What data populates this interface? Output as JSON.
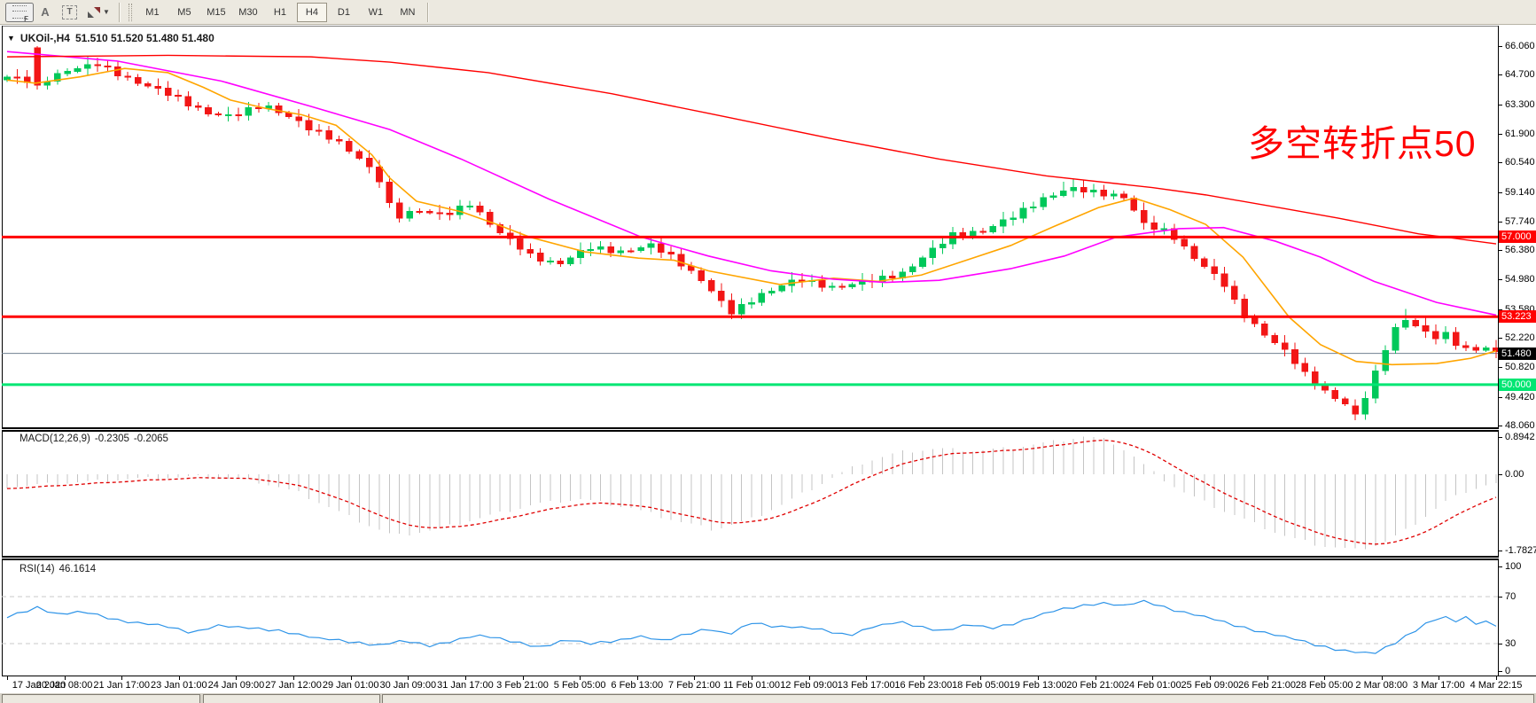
{
  "ui": {
    "toolbar": {
      "tools": [
        {
          "name": "fibonacci-tool",
          "glyph": "F"
        },
        {
          "name": "text-tool",
          "glyph": "A"
        },
        {
          "name": "text-label-tool",
          "glyph": "T"
        },
        {
          "name": "arrows-tool",
          "glyph": "arrows"
        }
      ],
      "timeframes": [
        "M1",
        "M5",
        "M15",
        "M30",
        "H1",
        "H4",
        "D1",
        "W1",
        "MN"
      ],
      "active_timeframe": "H4"
    },
    "title": {
      "collapse_glyph": "▼",
      "symbol": "UKOil-,H4",
      "quotes": "51.510 51.520 51.480 51.480"
    },
    "annotation": {
      "text": "多空转折点50",
      "color": "#FF0000"
    },
    "price_axis_ticks": [
      "66.060",
      "64.700",
      "63.300",
      "61.900",
      "60.540",
      "59.140",
      "57.740",
      "56.380",
      "54.980",
      "53.580",
      "52.220",
      "50.820",
      "49.420",
      "48.060"
    ],
    "x_axis_labels": [
      "17 Jan 2020",
      "20 Jan 08:00",
      "21 Jan 17:00",
      "23 Jan 01:00",
      "24 Jan 09:00",
      "27 Jan 12:00",
      "29 Jan 01:00",
      "30 Jan 09:00",
      "31 Jan 17:00",
      "3 Feb 21:00",
      "5 Feb 05:00",
      "6 Feb 13:00",
      "7 Feb 21:00",
      "11 Feb 01:00",
      "12 Feb 09:00",
      "13 Feb 17:00",
      "16 Feb 23:00",
      "18 Feb 05:00",
      "19 Feb 13:00",
      "20 Feb 21:00",
      "24 Feb 01:00",
      "25 Feb 09:00",
      "26 Feb 21:00",
      "28 Feb 05:00",
      "2 Mar 08:00",
      "3 Mar 17:00",
      "4 Mar 22:15"
    ]
  },
  "chart_data": [
    {
      "type": "candlestick",
      "symbol": "UKOil-",
      "timeframe": "H4",
      "ohlc_display": {
        "open": "51.510",
        "high": "51.520",
        "low": "51.480",
        "close": "51.480"
      },
      "num_candles": 149,
      "bull_color": "#00C85A",
      "bear_color": "#F21616",
      "y_ticks": [
        66.06,
        64.7,
        63.3,
        61.9,
        60.54,
        59.14,
        57.74,
        56.38,
        54.98,
        53.58,
        52.22,
        50.82,
        49.42,
        48.06
      ],
      "close_path": [
        [
          0,
          64.6
        ],
        [
          0.021,
          64.3
        ],
        [
          0.04,
          64.9
        ],
        [
          0.061,
          65.2
        ],
        [
          0.085,
          64.4
        ],
        [
          0.108,
          63.8
        ],
        [
          0.134,
          62.9
        ],
        [
          0.15,
          62.7
        ],
        [
          0.172,
          63.3
        ],
        [
          0.192,
          62.6
        ],
        [
          0.204,
          62.1
        ],
        [
          0.221,
          61.6
        ],
        [
          0.239,
          60.6
        ],
        [
          0.251,
          59.6
        ],
        [
          0.26,
          57.9
        ],
        [
          0.275,
          58.3
        ],
        [
          0.293,
          58.0
        ],
        [
          0.311,
          58.6
        ],
        [
          0.329,
          57.3
        ],
        [
          0.352,
          56.1
        ],
        [
          0.37,
          55.7
        ],
        [
          0.391,
          56.5
        ],
        [
          0.412,
          56.3
        ],
        [
          0.433,
          56.6
        ],
        [
          0.448,
          56.0
        ],
        [
          0.466,
          55.0
        ],
        [
          0.486,
          53.4
        ],
        [
          0.507,
          54.3
        ],
        [
          0.531,
          55.0
        ],
        [
          0.555,
          54.6
        ],
        [
          0.579,
          54.9
        ],
        [
          0.602,
          55.3
        ],
        [
          0.62,
          56.3
        ],
        [
          0.635,
          57.1
        ],
        [
          0.656,
          57.3
        ],
        [
          0.674,
          57.9
        ],
        [
          0.695,
          58.8
        ],
        [
          0.713,
          59.3
        ],
        [
          0.733,
          59.1
        ],
        [
          0.751,
          58.9
        ],
        [
          0.763,
          57.6
        ],
        [
          0.781,
          57.2
        ],
        [
          0.799,
          55.9
        ],
        [
          0.817,
          54.8
        ],
        [
          0.829,
          53.4
        ],
        [
          0.846,
          52.3
        ],
        [
          0.861,
          51.4
        ],
        [
          0.873,
          50.4
        ],
        [
          0.888,
          49.5
        ],
        [
          0.897,
          49.2
        ],
        [
          0.905,
          48.6
        ],
        [
          0.912,
          49.4
        ],
        [
          0.921,
          50.9
        ],
        [
          0.93,
          52.5
        ],
        [
          0.939,
          53.1
        ],
        [
          0.948,
          52.7
        ],
        [
          0.957,
          52.2
        ],
        [
          0.966,
          52.4
        ],
        [
          0.974,
          51.9
        ],
        [
          0.983,
          51.6
        ],
        [
          0.992,
          51.8
        ],
        [
          1,
          51.48
        ]
      ],
      "candle_overrides": {
        "3": {
          "o": 65.98,
          "h": 66.06,
          "l": 64.0,
          "c": 64.2
        },
        "72": {
          "l": 53.11
        },
        "105": {
          "h": 59.62
        },
        "134": {
          "o": 49.0,
          "h": 49.3,
          "l": 48.31,
          "c": 48.6
        },
        "139": {
          "h": 53.58
        }
      },
      "ma_lines": [
        {
          "name": "ma-fast",
          "color": "#FFA500",
          "path": [
            [
              0,
              64.45
            ],
            [
              0.019,
              64.3
            ],
            [
              0.049,
              64.6
            ],
            [
              0.079,
              65.0
            ],
            [
              0.108,
              64.8
            ],
            [
              0.132,
              64.1
            ],
            [
              0.15,
              63.5
            ],
            [
              0.174,
              63.1
            ],
            [
              0.198,
              62.8
            ],
            [
              0.221,
              62.3
            ],
            [
              0.245,
              60.9
            ],
            [
              0.257,
              59.8
            ],
            [
              0.275,
              58.7
            ],
            [
              0.305,
              58.2
            ],
            [
              0.329,
              57.6
            ],
            [
              0.351,
              57.0
            ],
            [
              0.388,
              56.3
            ],
            [
              0.424,
              56.0
            ],
            [
              0.448,
              55.9
            ],
            [
              0.471,
              55.4
            ],
            [
              0.519,
              54.75
            ],
            [
              0.555,
              55.05
            ],
            [
              0.585,
              54.9
            ],
            [
              0.614,
              55.2
            ],
            [
              0.644,
              55.9
            ],
            [
              0.674,
              56.6
            ],
            [
              0.703,
              57.5
            ],
            [
              0.733,
              58.4
            ],
            [
              0.757,
              58.85
            ],
            [
              0.781,
              58.3
            ],
            [
              0.805,
              57.6
            ],
            [
              0.83,
              56.05
            ],
            [
              0.861,
              53.2
            ],
            [
              0.882,
              51.9
            ],
            [
              0.906,
              51.1
            ],
            [
              0.93,
              50.95
            ],
            [
              0.96,
              51.0
            ],
            [
              0.983,
              51.25
            ],
            [
              1,
              51.6
            ]
          ]
        },
        {
          "name": "ma-medium",
          "color": "#FF00FF",
          "path": [
            [
              0,
              65.8
            ],
            [
              0.074,
              65.35
            ],
            [
              0.144,
              64.4
            ],
            [
              0.204,
              63.2
            ],
            [
              0.257,
              62.1
            ],
            [
              0.305,
              60.7
            ],
            [
              0.364,
              58.8
            ],
            [
              0.426,
              57.0
            ],
            [
              0.471,
              56.1
            ],
            [
              0.513,
              55.4
            ],
            [
              0.555,
              55.0
            ],
            [
              0.59,
              54.85
            ],
            [
              0.626,
              54.95
            ],
            [
              0.674,
              55.5
            ],
            [
              0.71,
              56.1
            ],
            [
              0.745,
              57.0
            ],
            [
              0.787,
              57.4
            ],
            [
              0.817,
              57.45
            ],
            [
              0.852,
              56.8
            ],
            [
              0.882,
              56.05
            ],
            [
              0.918,
              54.9
            ],
            [
              0.96,
              53.9
            ],
            [
              1,
              53.3
            ]
          ]
        },
        {
          "name": "ma-slow",
          "color": "#FF0000",
          "path": [
            [
              0,
              65.55
            ],
            [
              0.108,
              65.62
            ],
            [
              0.204,
              65.55
            ],
            [
              0.257,
              65.3
            ],
            [
              0.323,
              64.8
            ],
            [
              0.406,
              63.8
            ],
            [
              0.483,
              62.7
            ],
            [
              0.555,
              61.65
            ],
            [
              0.626,
              60.7
            ],
            [
              0.698,
              59.9
            ],
            [
              0.769,
              59.35
            ],
            [
              0.805,
              59.0
            ],
            [
              0.858,
              58.35
            ],
            [
              0.894,
              57.9
            ],
            [
              0.948,
              57.15
            ],
            [
              0.971,
              56.95
            ],
            [
              1,
              56.68
            ]
          ]
        }
      ],
      "h_lines": [
        {
          "price": 57.0,
          "label": "57.000",
          "color": "#FF0000",
          "badge_bg": "#FF0000",
          "badge_fg": "#FFFFFF"
        },
        {
          "price": 53.223,
          "label": "53.223",
          "color": "#FF0000",
          "badge_bg": "#FF0000",
          "badge_fg": "#FFFFFF"
        },
        {
          "price": 50.0,
          "label": "50.000",
          "color": "#00E673",
          "badge_bg": "#00E673",
          "badge_fg": "#FFFFFF"
        }
      ],
      "current_price": {
        "price": 51.48,
        "label": "51.480",
        "line_color": "#708090",
        "badge_bg": "#000000",
        "badge_fg": "#FFFFFF"
      }
    },
    {
      "type": "macd",
      "label": "MACD(12,26,9)",
      "value_macd": "-0.2305",
      "value_signal": "-0.2065",
      "axis_ticks": [
        {
          "label": "0.8942",
          "value": 0.8942
        },
        {
          "label": "0.00",
          "value": 0
        },
        {
          "label": "-1.7827",
          "value": -1.7827
        }
      ],
      "histogram_color": "#C4C4C4",
      "signal_color": "#E00000",
      "path": [
        [
          0,
          -0.3
        ],
        [
          0.04,
          -0.2
        ],
        [
          0.09,
          -0.1
        ],
        [
          0.13,
          -0.05
        ],
        [
          0.165,
          -0.15
        ],
        [
          0.195,
          -0.42
        ],
        [
          0.23,
          -1.0
        ],
        [
          0.26,
          -1.45
        ],
        [
          0.285,
          -1.32
        ],
        [
          0.315,
          -1.05
        ],
        [
          0.355,
          -0.7
        ],
        [
          0.385,
          -0.58
        ],
        [
          0.42,
          -0.8
        ],
        [
          0.45,
          -1.1
        ],
        [
          0.475,
          -1.3
        ],
        [
          0.5,
          -1.05
        ],
        [
          0.52,
          -0.72
        ],
        [
          0.54,
          -0.35
        ],
        [
          0.557,
          -0.03
        ],
        [
          0.575,
          0.28
        ],
        [
          0.6,
          0.52
        ],
        [
          0.625,
          0.6
        ],
        [
          0.65,
          0.55
        ],
        [
          0.675,
          0.62
        ],
        [
          0.7,
          0.75
        ],
        [
          0.724,
          0.8942
        ],
        [
          0.74,
          0.8
        ],
        [
          0.753,
          0.52
        ],
        [
          0.765,
          0.18
        ],
        [
          0.774,
          -0.06
        ],
        [
          0.79,
          -0.42
        ],
        [
          0.812,
          -0.78
        ],
        [
          0.835,
          -1.12
        ],
        [
          0.858,
          -1.45
        ],
        [
          0.882,
          -1.67
        ],
        [
          0.905,
          -1.7827
        ],
        [
          0.922,
          -1.65
        ],
        [
          0.938,
          -1.35
        ],
        [
          0.952,
          -1.0
        ],
        [
          0.966,
          -0.65
        ],
        [
          0.98,
          -0.4
        ],
        [
          0.991,
          -0.27
        ],
        [
          1,
          -0.2305
        ]
      ]
    },
    {
      "type": "rsi",
      "label": "RSI(14)",
      "value": "46.1614",
      "axis_ticks": [
        {
          "label": "100",
          "value": 100
        },
        {
          "label": "70",
          "value": 70
        },
        {
          "label": "30",
          "value": 30
        },
        {
          "label": "0",
          "value": 0
        }
      ],
      "overbought": 70,
      "oversold": 30,
      "line_color": "#2E94E8",
      "level_color": "#C8C8C8",
      "path": [
        [
          0,
          52
        ],
        [
          0.02,
          61
        ],
        [
          0.035,
          55
        ],
        [
          0.05,
          57
        ],
        [
          0.075,
          50
        ],
        [
          0.1,
          46
        ],
        [
          0.125,
          39
        ],
        [
          0.14,
          46
        ],
        [
          0.16,
          43
        ],
        [
          0.185,
          41
        ],
        [
          0.21,
          34
        ],
        [
          0.235,
          31
        ],
        [
          0.25,
          29
        ],
        [
          0.265,
          32
        ],
        [
          0.285,
          28
        ],
        [
          0.3,
          33
        ],
        [
          0.315,
          37
        ],
        [
          0.335,
          33
        ],
        [
          0.36,
          27
        ],
        [
          0.375,
          33
        ],
        [
          0.39,
          30
        ],
        [
          0.41,
          33
        ],
        [
          0.425,
          36
        ],
        [
          0.44,
          32
        ],
        [
          0.455,
          38
        ],
        [
          0.47,
          43
        ],
        [
          0.485,
          37
        ],
        [
          0.5,
          48
        ],
        [
          0.515,
          45
        ],
        [
          0.53,
          44
        ],
        [
          0.55,
          41
        ],
        [
          0.565,
          37
        ],
        [
          0.58,
          44
        ],
        [
          0.6,
          48
        ],
        [
          0.615,
          44
        ],
        [
          0.63,
          41
        ],
        [
          0.645,
          46
        ],
        [
          0.66,
          43
        ],
        [
          0.675,
          47
        ],
        [
          0.69,
          53
        ],
        [
          0.705,
          58
        ],
        [
          0.72,
          62
        ],
        [
          0.735,
          65
        ],
        [
          0.75,
          62
        ],
        [
          0.765,
          66
        ],
        [
          0.78,
          60
        ],
        [
          0.8,
          54
        ],
        [
          0.82,
          47
        ],
        [
          0.84,
          41
        ],
        [
          0.86,
          35
        ],
        [
          0.875,
          30
        ],
        [
          0.89,
          26
        ],
        [
          0.905,
          23
        ],
        [
          0.918,
          21
        ],
        [
          0.93,
          29
        ],
        [
          0.945,
          41
        ],
        [
          0.955,
          49
        ],
        [
          0.965,
          53
        ],
        [
          0.972,
          48
        ],
        [
          0.98,
          52
        ],
        [
          0.985,
          47
        ],
        [
          0.992,
          49
        ],
        [
          1,
          46.16
        ]
      ]
    }
  ]
}
